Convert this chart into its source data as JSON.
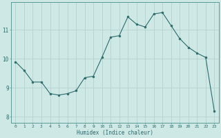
{
  "x": [
    0,
    1,
    2,
    3,
    4,
    5,
    6,
    7,
    8,
    9,
    10,
    11,
    12,
    13,
    14,
    15,
    16,
    17,
    18,
    19,
    20,
    21,
    22,
    23
  ],
  "y": [
    9.9,
    9.6,
    9.2,
    9.2,
    8.8,
    8.75,
    8.8,
    8.9,
    9.35,
    9.4,
    10.05,
    10.75,
    10.8,
    11.45,
    11.2,
    11.1,
    11.55,
    11.6,
    11.15,
    10.7,
    10.4,
    10.2,
    10.05,
    8.2
  ],
  "xlabel": "Humidex (Indice chaleur)",
  "line_color": "#2e6b6b",
  "marker_color": "#2e6b6b",
  "bg_color": "#cde8e5",
  "grid_color": "#aecfcc",
  "tick_color": "#2e6b6b",
  "spine_color": "#5a9a95",
  "ylim": [
    7.8,
    11.95
  ],
  "xlim": [
    -0.5,
    23.5
  ],
  "yticks": [
    8,
    9,
    10,
    11
  ],
  "xticks": [
    0,
    1,
    2,
    3,
    4,
    5,
    6,
    7,
    8,
    9,
    10,
    11,
    12,
    13,
    14,
    15,
    16,
    17,
    18,
    19,
    20,
    21,
    22,
    23
  ]
}
